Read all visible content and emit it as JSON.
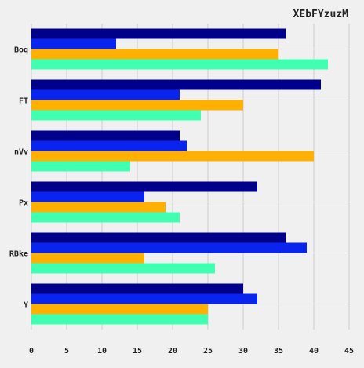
{
  "chart_data": {
    "type": "bar",
    "orientation": "horizontal",
    "title": "XEbFYzuzM",
    "xlabel": "",
    "ylabel": "",
    "categories": [
      "Boq",
      "FT",
      "nVv",
      "Px",
      "RBke",
      "Y"
    ],
    "series": [
      {
        "color": "#00008b",
        "values": [
          36,
          41,
          21,
          32,
          36,
          30
        ]
      },
      {
        "color": "#0a24f0",
        "values": [
          12,
          21,
          22,
          16,
          39,
          32
        ]
      },
      {
        "color": "#ffb000",
        "values": [
          35,
          30,
          40,
          19,
          16,
          25
        ]
      },
      {
        "color": "#40ffb0",
        "values": [
          42,
          24,
          14,
          21,
          26,
          25
        ]
      }
    ],
    "xlim": [
      0,
      45
    ],
    "xticks": [
      0,
      5,
      10,
      15,
      20,
      25,
      30,
      35,
      40,
      45
    ],
    "grid": true,
    "background": "#f0f0f0"
  }
}
